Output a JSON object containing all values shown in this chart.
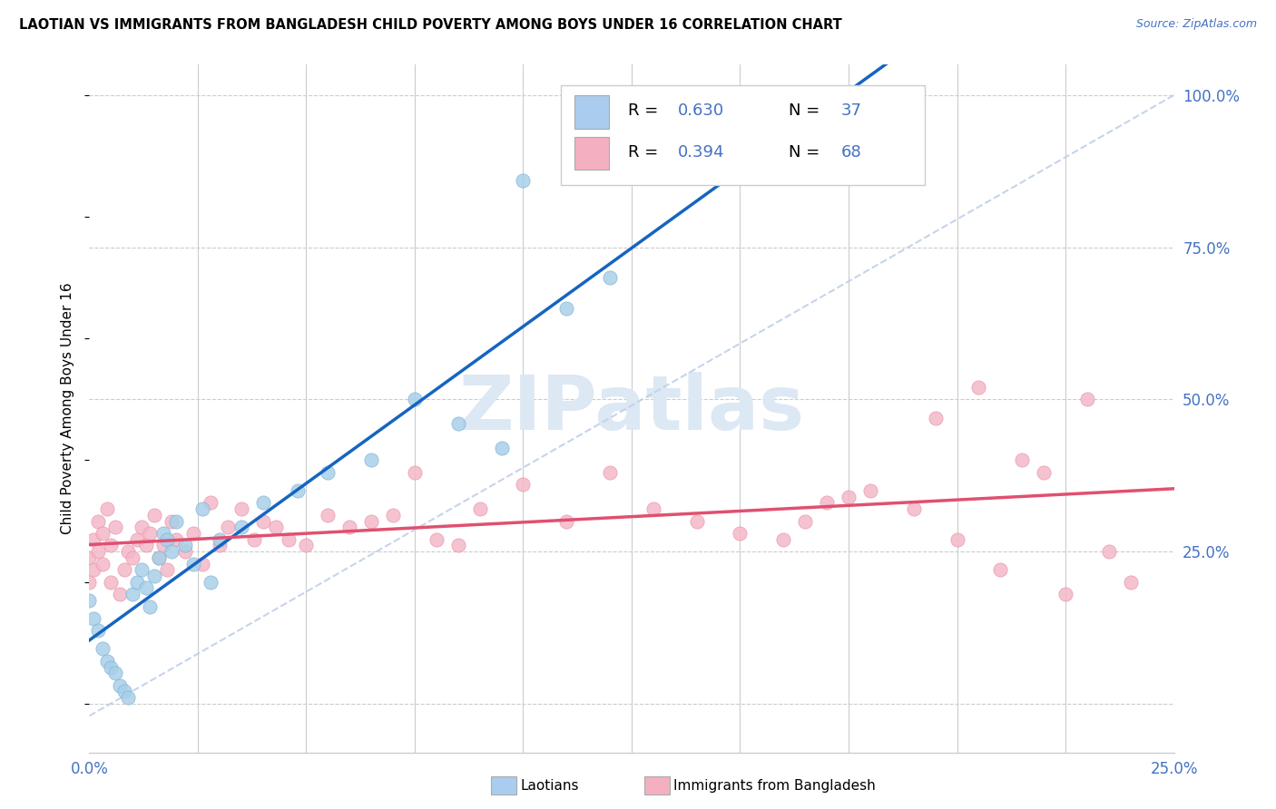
{
  "title": "LAOTIAN VS IMMIGRANTS FROM BANGLADESH CHILD POVERTY AMONG BOYS UNDER 16 CORRELATION CHART",
  "source": "Source: ZipAtlas.com",
  "ylabel": "Child Poverty Among Boys Under 16",
  "xlim": [
    0.0,
    0.25
  ],
  "ylim": [
    -0.08,
    1.05
  ],
  "laotian_R": 0.63,
  "laotian_N": 37,
  "bangladesh_R": 0.394,
  "bangladesh_N": 68,
  "blue_scatter": "#a8cfe8",
  "blue_edge": "#7ab0d4",
  "blue_line": "#1565C0",
  "pink_scatter": "#f4b8c8",
  "pink_edge": "#e890a8",
  "pink_line": "#e05070",
  "ref_line_color": "#c0d0e8",
  "grid_color": "#cccccc",
  "watermark_color": "#dce8f4",
  "axis_label_color": "#4472C4",
  "legend_blue_fill": "#aaccee",
  "legend_pink_fill": "#f4b0c0",
  "laotian_x": [
    0.0,
    0.001,
    0.002,
    0.003,
    0.004,
    0.005,
    0.006,
    0.007,
    0.008,
    0.009,
    0.01,
    0.011,
    0.012,
    0.013,
    0.014,
    0.015,
    0.016,
    0.017,
    0.018,
    0.019,
    0.02,
    0.022,
    0.024,
    0.026,
    0.028,
    0.03,
    0.035,
    0.04,
    0.048,
    0.055,
    0.065,
    0.075,
    0.085,
    0.095,
    0.1,
    0.11,
    0.12
  ],
  "laotian_y": [
    0.17,
    0.14,
    0.12,
    0.09,
    0.07,
    0.06,
    0.05,
    0.03,
    0.02,
    0.01,
    0.18,
    0.2,
    0.22,
    0.19,
    0.16,
    0.21,
    0.24,
    0.28,
    0.27,
    0.25,
    0.3,
    0.26,
    0.23,
    0.32,
    0.2,
    0.27,
    0.29,
    0.33,
    0.35,
    0.38,
    0.4,
    0.5,
    0.46,
    0.42,
    0.86,
    0.65,
    0.7
  ],
  "bangladesh_x": [
    0.0,
    0.0,
    0.001,
    0.001,
    0.002,
    0.002,
    0.003,
    0.003,
    0.004,
    0.005,
    0.005,
    0.006,
    0.007,
    0.008,
    0.009,
    0.01,
    0.011,
    0.012,
    0.013,
    0.014,
    0.015,
    0.016,
    0.017,
    0.018,
    0.019,
    0.02,
    0.022,
    0.024,
    0.026,
    0.028,
    0.03,
    0.032,
    0.035,
    0.038,
    0.04,
    0.043,
    0.046,
    0.05,
    0.055,
    0.06,
    0.065,
    0.07,
    0.075,
    0.08,
    0.085,
    0.09,
    0.1,
    0.11,
    0.12,
    0.13,
    0.14,
    0.15,
    0.16,
    0.17,
    0.18,
    0.19,
    0.2,
    0.21,
    0.215,
    0.22,
    0.225,
    0.23,
    0.235,
    0.24,
    0.165,
    0.175,
    0.195,
    0.205
  ],
  "bangladesh_y": [
    0.2,
    0.24,
    0.27,
    0.22,
    0.25,
    0.3,
    0.28,
    0.23,
    0.32,
    0.26,
    0.2,
    0.29,
    0.18,
    0.22,
    0.25,
    0.24,
    0.27,
    0.29,
    0.26,
    0.28,
    0.31,
    0.24,
    0.26,
    0.22,
    0.3,
    0.27,
    0.25,
    0.28,
    0.23,
    0.33,
    0.26,
    0.29,
    0.32,
    0.27,
    0.3,
    0.29,
    0.27,
    0.26,
    0.31,
    0.29,
    0.3,
    0.31,
    0.38,
    0.27,
    0.26,
    0.32,
    0.36,
    0.3,
    0.38,
    0.32,
    0.3,
    0.28,
    0.27,
    0.33,
    0.35,
    0.32,
    0.27,
    0.22,
    0.4,
    0.38,
    0.18,
    0.5,
    0.25,
    0.2,
    0.3,
    0.34,
    0.47,
    0.52
  ]
}
